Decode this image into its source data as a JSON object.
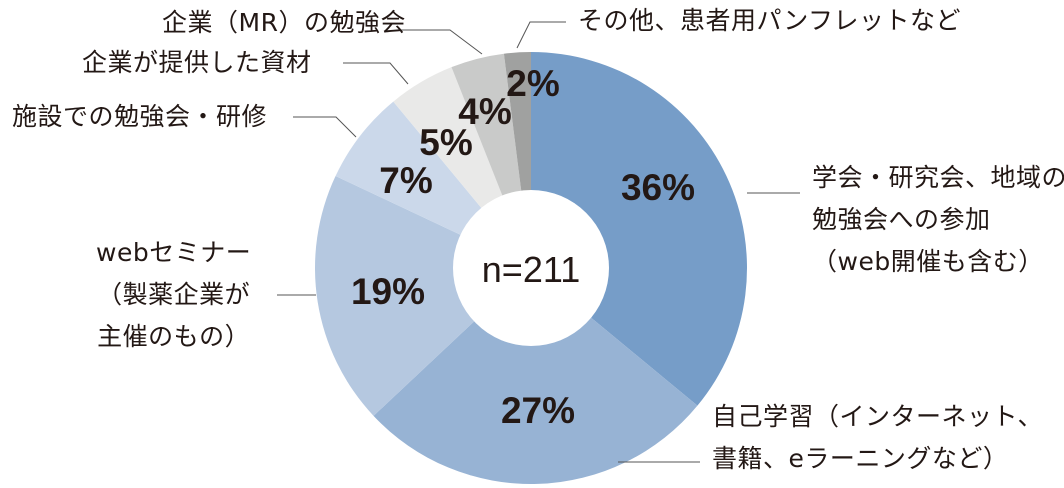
{
  "chart_data": {
    "type": "pie",
    "subtype": "donut",
    "title": "",
    "center_label": "n=211",
    "n": 211,
    "categories": [
      "学会・研究会、地域の勉強会への参加（web開催も含む）",
      "自己学習（インターネット、書籍、eラーニングなど）",
      "webセミナー（製薬企業が主催のもの）",
      "施設での勉強会・研修",
      "企業が提供した資材",
      "企業（MR）の勉強会",
      "その他、患者用パンフレットなど"
    ],
    "values": [
      36,
      27,
      19,
      7,
      5,
      4,
      2
    ],
    "unit": "%",
    "colors": [
      "#769dc8",
      "#97b3d4",
      "#b5c8e0",
      "#cbd8ea",
      "#e9e9e8",
      "#c9cac9",
      "#a0a1a0"
    ],
    "start_angle_deg": 0,
    "direction": "clockwise",
    "legend_position": "callout-labels"
  },
  "labels": {
    "s0": [
      "学会・研究会、地域の",
      "勉強会への参加",
      "（web開催も含む）"
    ],
    "s1": [
      "自己学習（インターネット、",
      "書籍、eラーニングなど）"
    ],
    "s2": [
      "webセミナー",
      "（製薬企業が",
      "主催のもの）"
    ],
    "s3": [
      "施設での勉強会・研修"
    ],
    "s4": [
      "企業が提供した資材"
    ],
    "s5": [
      "企業（MR）の勉強会"
    ],
    "s6": [
      "その他、患者用パンフレットなど"
    ]
  },
  "pct_labels": [
    "36%",
    "27%",
    "19%",
    "7%",
    "5%",
    "4%",
    "2%"
  ]
}
